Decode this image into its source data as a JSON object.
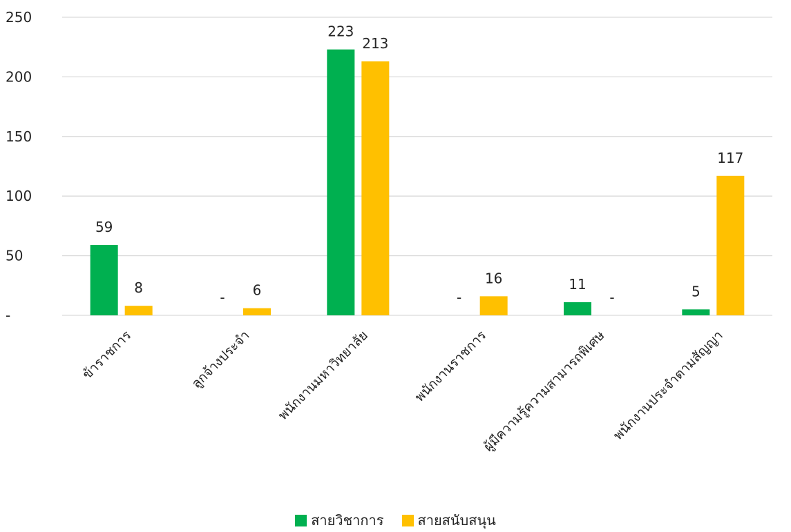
{
  "chart_data": {
    "type": "bar",
    "categories": [
      "ข้าราชการ",
      "ลูกจ้างประจำ",
      "พนักงานมหาวิทยาลัย",
      "พนักงานราชการ",
      "ผู้มีความรู้ความสามารถพิเศษ",
      "พนักงานประจำตามสัญญา"
    ],
    "series": [
      {
        "name": "สายวิชาการ",
        "color": "#00B050",
        "values": [
          59,
          0,
          223,
          0,
          11,
          5
        ],
        "labels": [
          "59",
          "-",
          "223",
          "-",
          "11",
          "5"
        ]
      },
      {
        "name": "สายสนับสนุน",
        "color": "#FFC000",
        "values": [
          8,
          6,
          213,
          16,
          0,
          117
        ],
        "labels": [
          "8",
          "6",
          "213",
          "16",
          "-",
          "117"
        ]
      }
    ],
    "y_ticks": [
      {
        "value": 0,
        "label": "-"
      },
      {
        "value": 50,
        "label": "50"
      },
      {
        "value": 100,
        "label": "100"
      },
      {
        "value": 150,
        "label": "150"
      },
      {
        "value": 200,
        "label": "200"
      },
      {
        "value": 250,
        "label": "250"
      }
    ],
    "ylim": [
      0,
      250
    ],
    "grid": true,
    "gridline_color": "#D9D9D9",
    "legend_position": "bottom",
    "title": "",
    "xlabel": "",
    "ylabel": ""
  }
}
